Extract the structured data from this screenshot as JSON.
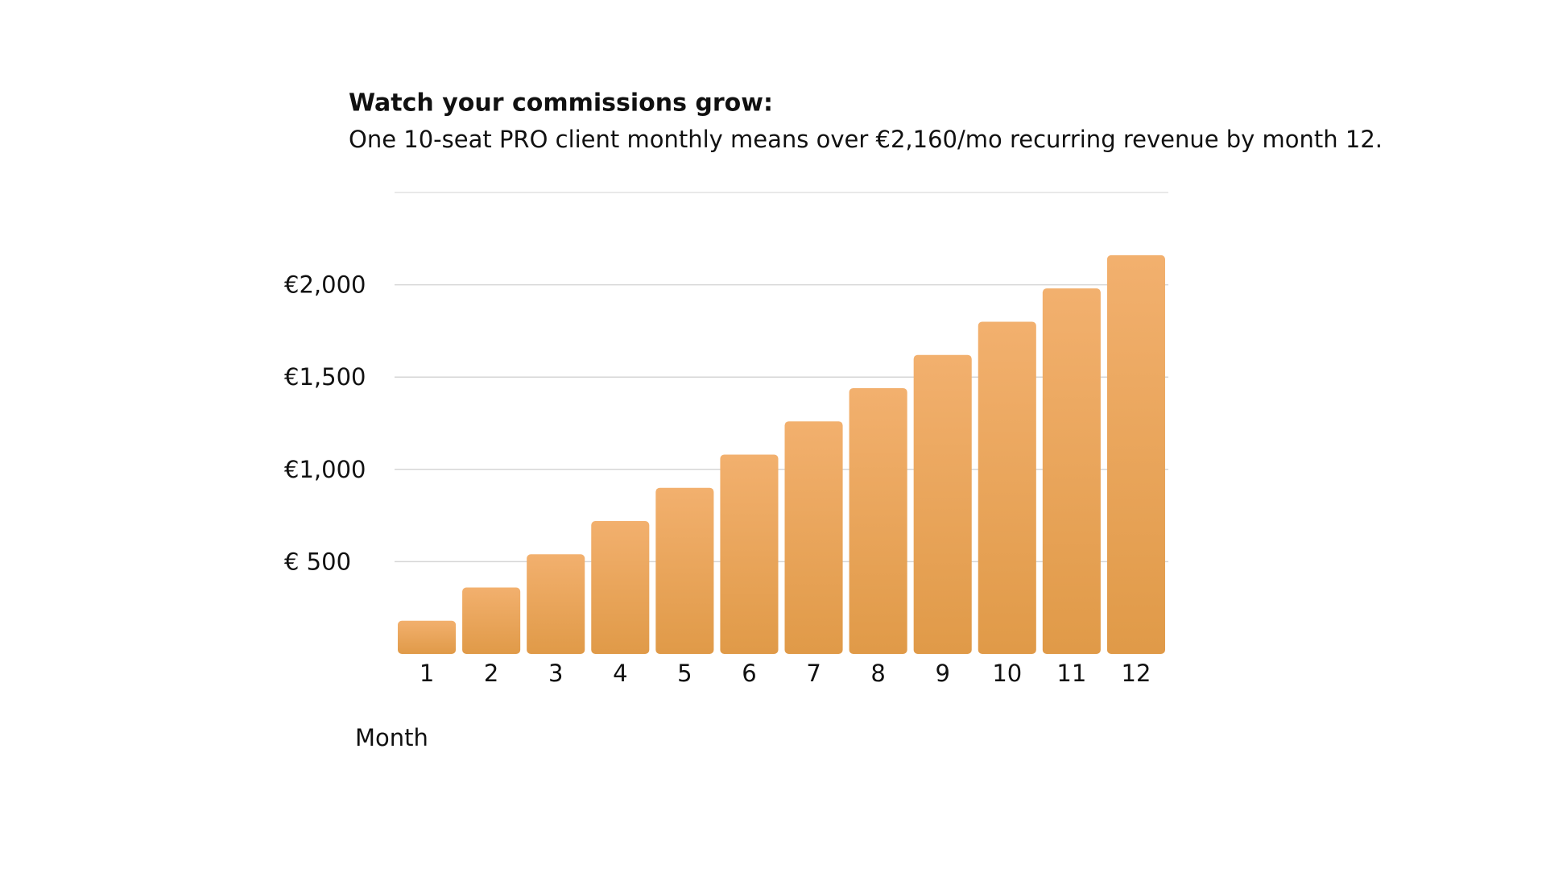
{
  "chart_data": {
    "type": "bar",
    "title": "Watch your commissions grow:",
    "subtitle": "One 10-seat PRO client monthly means over €2,160/mo recurring revenue by month 12.",
    "x_label": "Month",
    "categories": [
      "1",
      "2",
      "3",
      "4",
      "5",
      "6",
      "7",
      "8",
      "9",
      "10",
      "11",
      "12"
    ],
    "values": [
      180,
      360,
      540,
      720,
      900,
      1080,
      1260,
      1440,
      1620,
      1800,
      1980,
      2160
    ],
    "color": [
      "#f2b06e",
      "#e09a48"
    ],
    "ylim": [
      0,
      2500
    ],
    "yticks": [
      {
        "value": 500,
        "label": "€ 500"
      },
      {
        "value": 1000,
        "label": "€1,000"
      },
      {
        "value": 1500,
        "label": "€1,500"
      },
      {
        "value": 2000,
        "label": "€2,000"
      }
    ],
    "grid": true
  }
}
